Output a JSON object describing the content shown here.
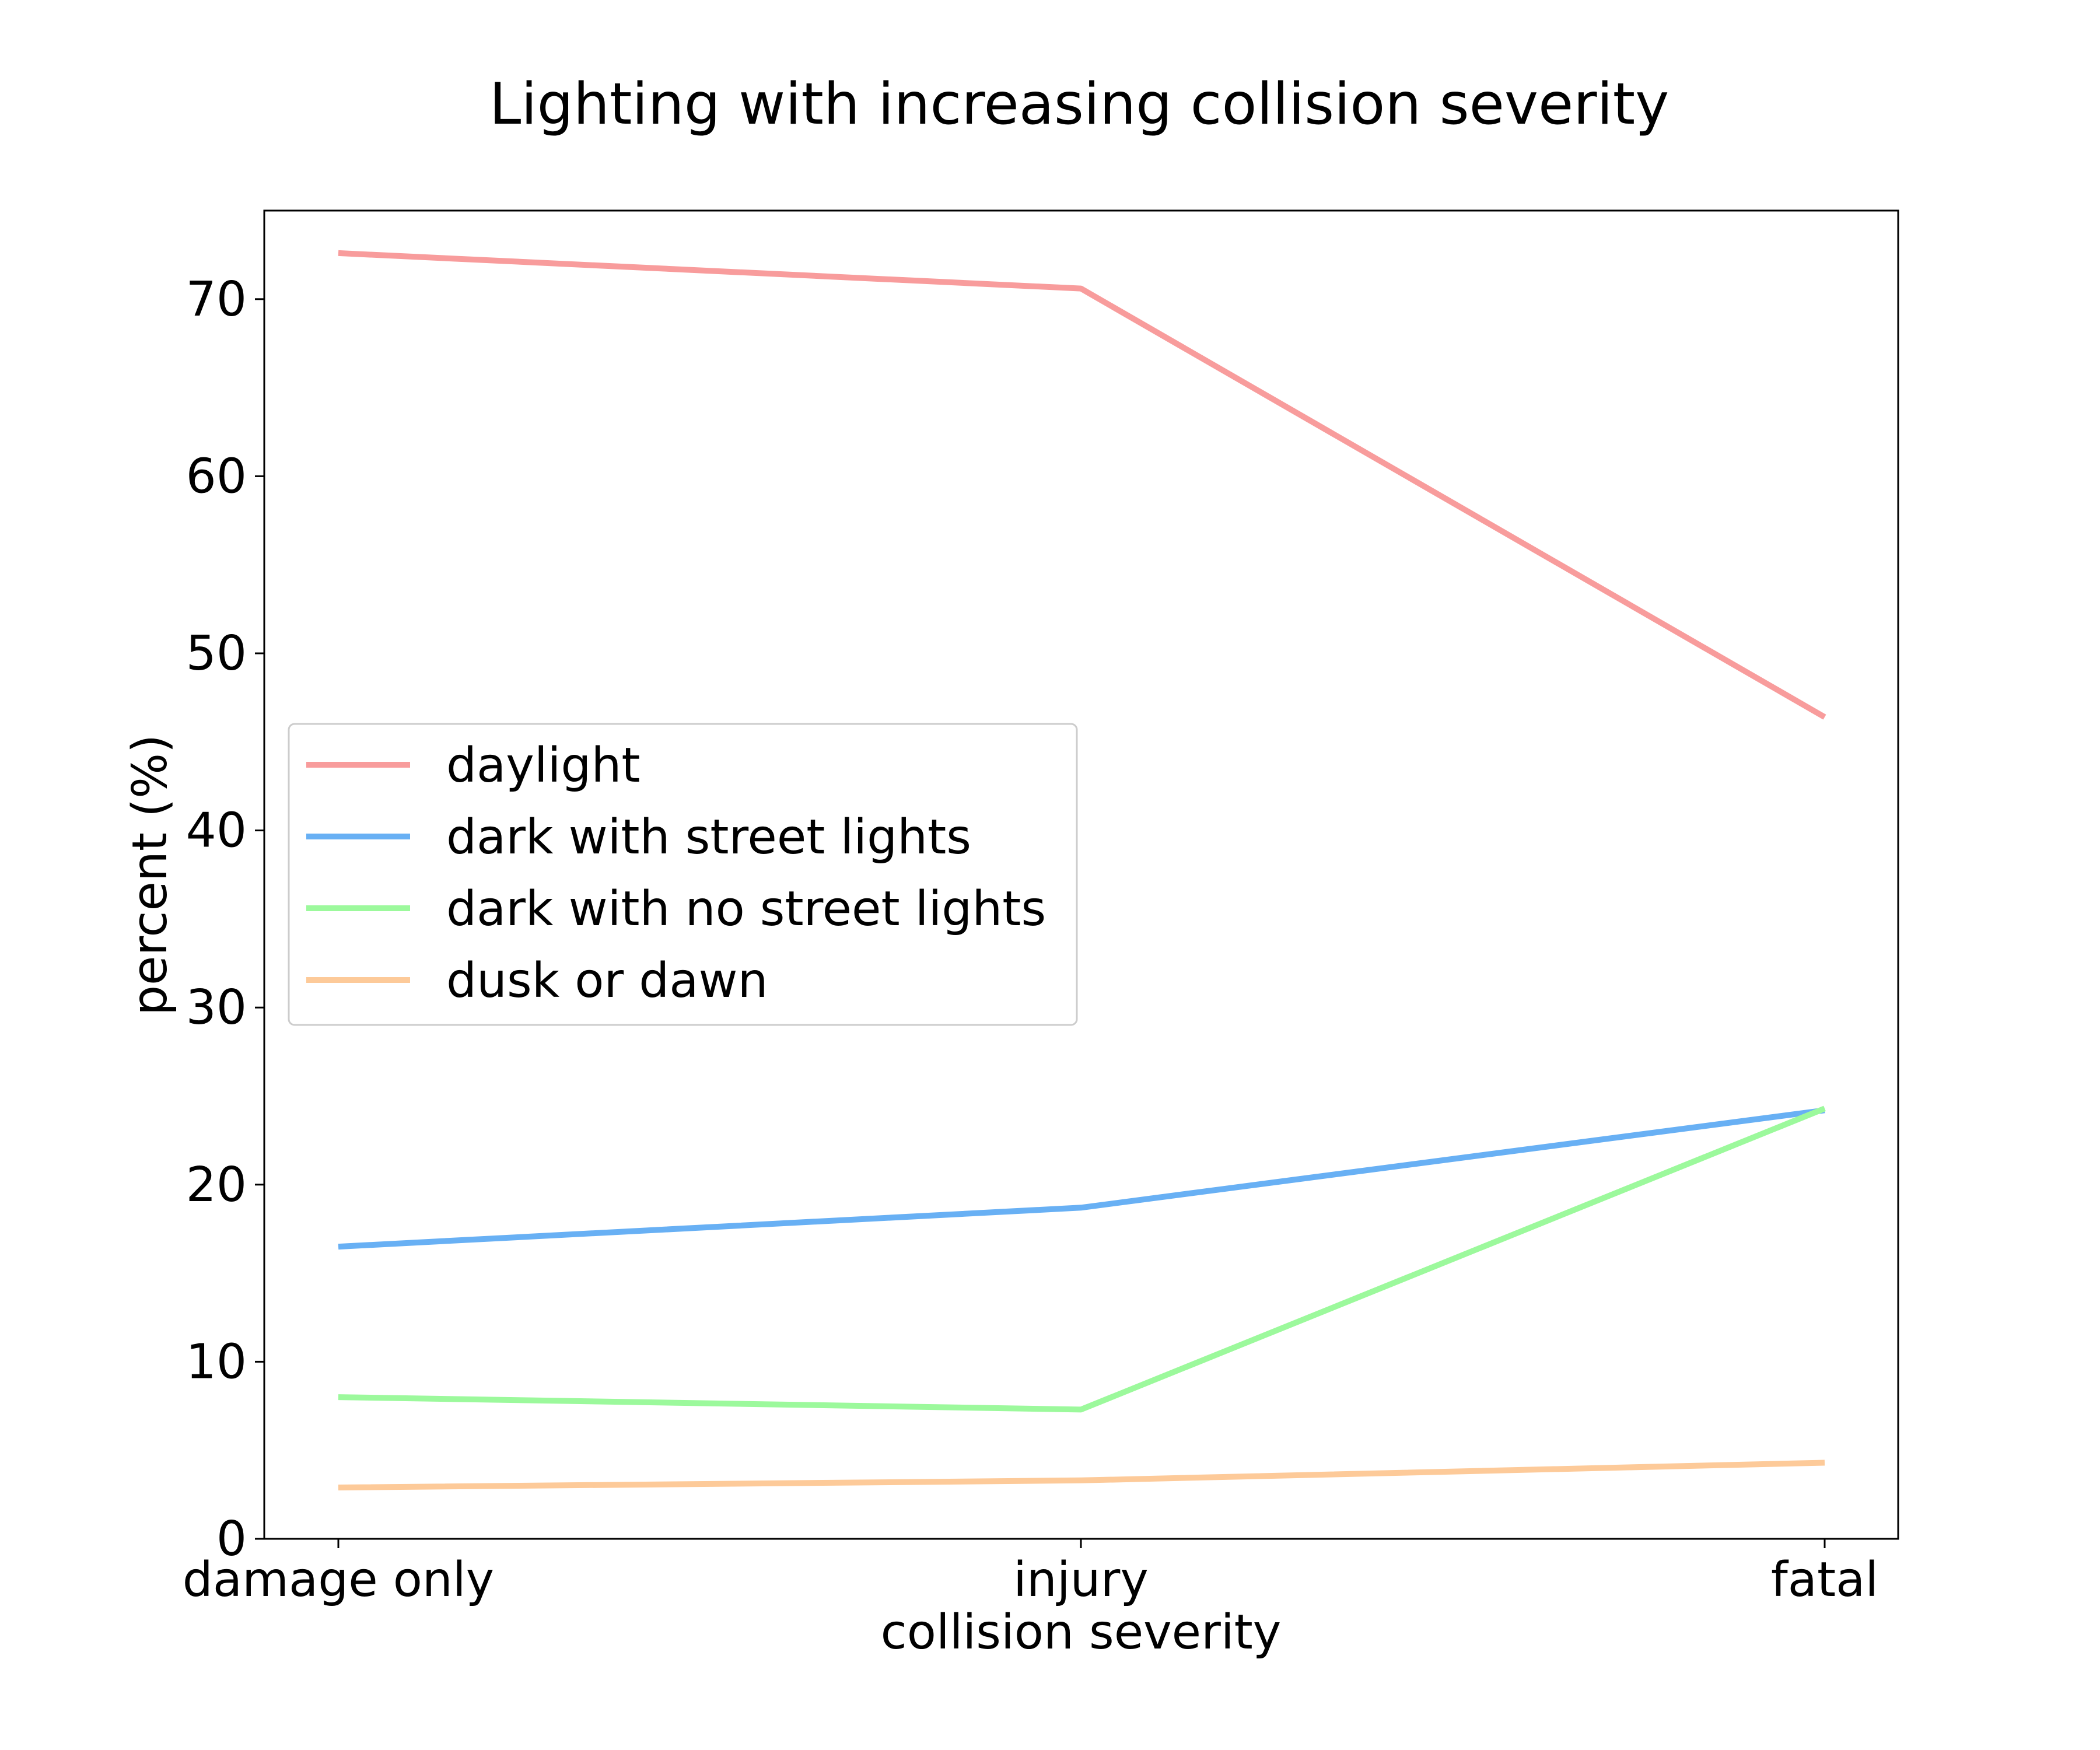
{
  "chart_data": {
    "type": "line",
    "title": "Lighting with increasing collision severity",
    "xlabel": "collision severity",
    "ylabel": "percent (%)",
    "categories": [
      "damage only",
      "injury",
      "fatal"
    ],
    "ylim": [
      0,
      75
    ],
    "yticks": [
      0,
      10,
      20,
      30,
      40,
      50,
      60,
      70
    ],
    "grid": false,
    "legend_position": "center-left",
    "series": [
      {
        "name": "daylight",
        "color": "#f89c9c",
        "values": [
          72.6,
          70.6,
          46.4
        ]
      },
      {
        "name": "dark with street lights",
        "color": "#68b0f4",
        "values": [
          16.5,
          18.7,
          24.2
        ]
      },
      {
        "name": "dark with no street lights",
        "color": "#9cf99c",
        "values": [
          8.0,
          7.3,
          24.3
        ]
      },
      {
        "name": "dusk or dawn",
        "color": "#fdca99",
        "values": [
          2.9,
          3.3,
          4.3
        ]
      }
    ]
  }
}
